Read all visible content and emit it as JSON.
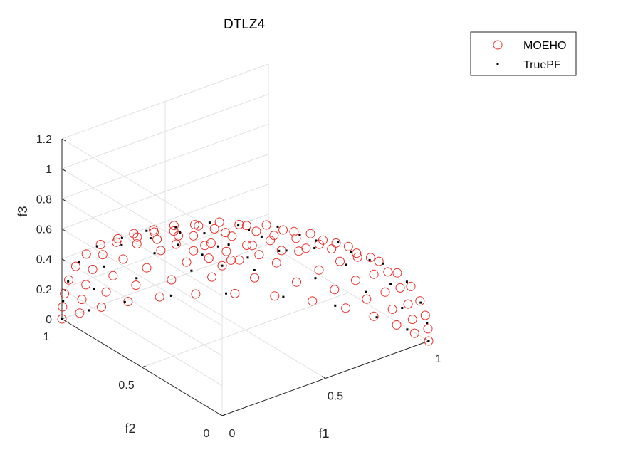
{
  "chart_data": {
    "type": "scatter",
    "projection": "3d",
    "title": "DTLZ4",
    "xlabel": "f1",
    "ylabel": "f2",
    "zlabel": "f3",
    "xlim": [
      0,
      1
    ],
    "ylim": [
      0,
      1
    ],
    "zlim": [
      0,
      1.2
    ],
    "xticks": [
      {
        "v": 0,
        "label": "0"
      },
      {
        "v": 0.5,
        "label": "0.5"
      },
      {
        "v": 1,
        "label": "1"
      }
    ],
    "yticks": [
      {
        "v": 0,
        "label": "0"
      },
      {
        "v": 0.5,
        "label": "0.5"
      },
      {
        "v": 1,
        "label": "1"
      }
    ],
    "zticks": [
      {
        "v": 0,
        "label": "0"
      },
      {
        "v": 0.2,
        "label": "0.2"
      },
      {
        "v": 0.4,
        "label": "0.4"
      },
      {
        "v": 0.6,
        "label": "0.6"
      },
      {
        "v": 0.8,
        "label": "0.8"
      },
      {
        "v": 1,
        "label": "1"
      },
      {
        "v": 1.2,
        "label": "1.2"
      }
    ],
    "grid": true,
    "legend_position": "top-right",
    "series": [
      {
        "name": "MOEHO",
        "marker": "open-circle",
        "color": "#e8302a",
        "surface": "unit-sphere-octant",
        "divisions": 13
      },
      {
        "name": "TruePF",
        "marker": "dot",
        "color": "#000000",
        "surface": "unit-sphere-octant",
        "divisions": 9
      }
    ]
  }
}
